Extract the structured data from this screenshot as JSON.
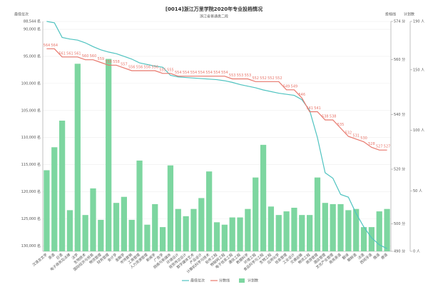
{
  "chart_data": {
    "type": "combo",
    "title": "[0014]浙江万里学院2020年专业投档情况",
    "subtitle": "浙江省普通类二段",
    "categories": [
      "汉语言文学",
      "英语",
      "日语",
      "电子商务及法律",
      "法学",
      "生物技术",
      "国际经济与贸易",
      "物流管理",
      "财务管理",
      "会计学",
      "金融学",
      "市场营销",
      "工商管理",
      "人力资源管理",
      "新闻学",
      "广告学",
      "网络与新媒体",
      "环境设计",
      "视觉传达设计",
      "数字媒体艺术",
      "产品设计",
      "计算机科学与技术",
      "软件工程",
      "物联网工程",
      "电子信息工程",
      "通信工程",
      "数据科学",
      "环境工程",
      "食品科学与工程",
      "生物工程",
      "应用化学",
      "信息管理",
      "工业设计",
      "交通运输",
      "物流工程",
      "旅游管理",
      "酒店管理",
      "文化产业管理",
      "商务英语",
      "翻译",
      "朝鲜语",
      "法语",
      "西班牙语",
      "俄语",
      "德语"
    ],
    "series": [
      {
        "name": "最低位次",
        "color": "#4fc3c0",
        "axis": "y",
        "values": [
          88544,
          88800,
          91500,
          91800,
          92000,
          92500,
          93200,
          93800,
          94200,
          94500,
          95000,
          95500,
          96200,
          96500,
          96800,
          97000,
          98500,
          98800,
          98900,
          99000,
          99100,
          99200,
          99300,
          99500,
          99800,
          100200,
          100500,
          100800,
          101200,
          101500,
          101800,
          102000,
          102200,
          103000,
          105000,
          110000,
          116500,
          117500,
          120500,
          121000,
          124000,
          126500,
          128500,
          129800,
          130500
        ]
      },
      {
        "name": "分数线",
        "color": "#e8776c",
        "axis": "y2",
        "values": [
          564,
          564,
          561,
          561,
          561,
          560,
          560,
          559,
          558,
          558,
          557,
          556,
          556,
          556,
          556,
          555,
          555,
          554,
          554,
          554,
          554,
          554,
          554,
          554,
          553,
          553,
          553,
          552,
          552,
          552,
          552,
          549,
          549,
          546,
          541,
          541,
          538,
          538,
          535,
          532,
          531,
          530,
          528,
          527,
          527
        ]
      },
      {
        "name": "计划数",
        "color": "#7dd6a0",
        "axis": "y3",
        "values": [
          67,
          86,
          108,
          34,
          155,
          30,
          52,
          26,
          159,
          40,
          45,
          26,
          75,
          22,
          39,
          20,
          71,
          35,
          29,
          35,
          44,
          66,
          24,
          22,
          28,
          28,
          35,
          61,
          88,
          37,
          30,
          33,
          36,
          30,
          30,
          61,
          40,
          39,
          39,
          34,
          35,
          20,
          20,
          33,
          35
        ]
      }
    ],
    "ylabel": "最低位次",
    "ylim": [
      88544,
      131000
    ],
    "yticks": [
      {
        "value": 88544,
        "label": "88,544 名"
      },
      {
        "value": 90000,
        "label": "90,000 名"
      },
      {
        "value": 95000,
        "label": "95,000 名"
      },
      {
        "value": 100000,
        "label": "100,000 名"
      },
      {
        "value": 105000,
        "label": "105,000 名"
      },
      {
        "value": 110000,
        "label": "110,000 名"
      },
      {
        "value": 115000,
        "label": "115,000 名"
      },
      {
        "value": 120000,
        "label": "120,000 名"
      },
      {
        "value": 125000,
        "label": "125,000 名"
      },
      {
        "value": 130000,
        "label": "130,000 名"
      }
    ],
    "y2label": "投档线",
    "y2lim": [
      490,
      574
    ],
    "y2ticks": [
      {
        "value": 574,
        "label": "574 分"
      },
      {
        "value": 560,
        "label": "560 分"
      },
      {
        "value": 540,
        "label": "540 分"
      },
      {
        "value": 520,
        "label": "520 分"
      },
      {
        "value": 500,
        "label": "500 分"
      },
      {
        "value": 490,
        "label": "490 分"
      }
    ],
    "y3label": "计划数",
    "y3lim": [
      0,
      190
    ],
    "y3ticks": [
      {
        "value": 190,
        "label": "190 人"
      },
      {
        "value": 150,
        "label": "150 人"
      },
      {
        "value": 100,
        "label": "100 人"
      },
      {
        "value": 50,
        "label": "50 人"
      },
      {
        "value": 0,
        "label": "0 人"
      }
    ],
    "grid": true,
    "legend": "bottom"
  }
}
